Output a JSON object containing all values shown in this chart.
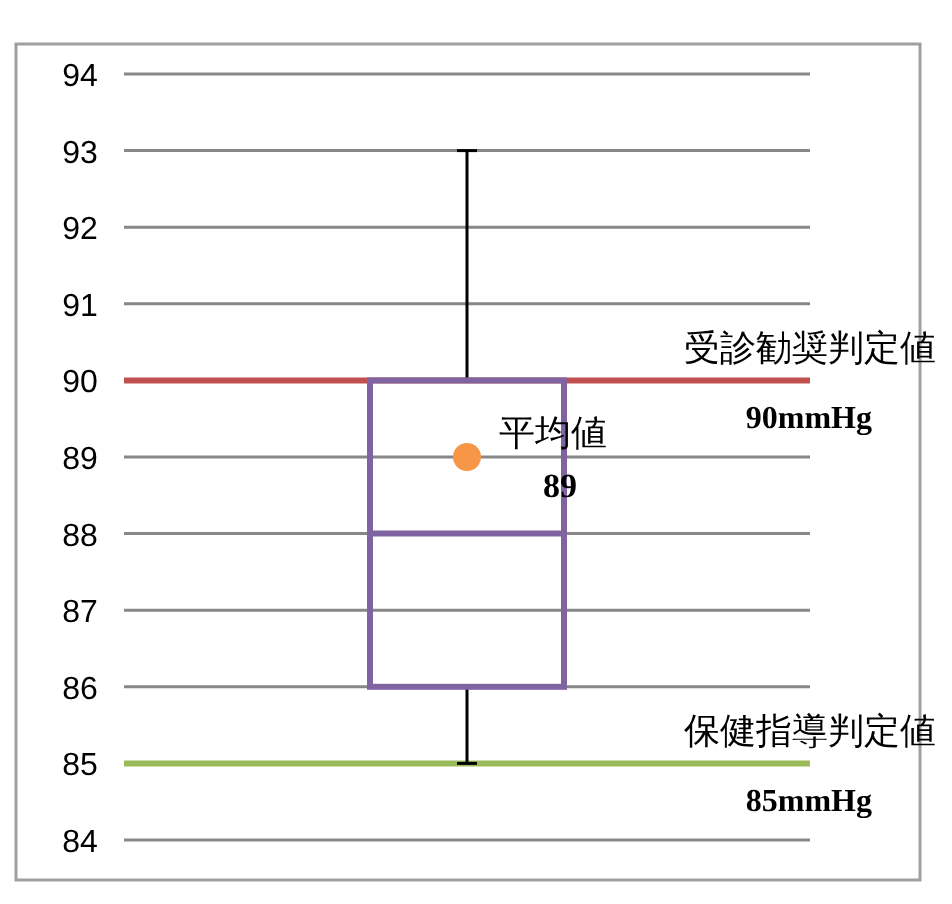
{
  "chart_data": {
    "type": "box",
    "categories": [
      null
    ],
    "boxes": [
      {
        "low": 85,
        "q1": 86,
        "median": 88,
        "q3": 90,
        "high": 93,
        "mean": 89
      }
    ],
    "color": "#8064a2",
    "ylim": [
      84,
      94
    ],
    "yticks": [
      84,
      85,
      86,
      87,
      88,
      89,
      90,
      91,
      92,
      93,
      94
    ],
    "grid": "y",
    "ref_lines": [
      {
        "axis": "y",
        "value": 90,
        "label": "受診勧奨判定値 90mmHg",
        "color": "#c0504d"
      },
      {
        "axis": "y",
        "value": 85,
        "label": "保健指導判定値 85mmHg",
        "color": "#9bbb59"
      }
    ],
    "annotations": [
      {
        "text": "平均値",
        "y": 89
      },
      {
        "text": "89",
        "y": 89
      }
    ]
  }
}
